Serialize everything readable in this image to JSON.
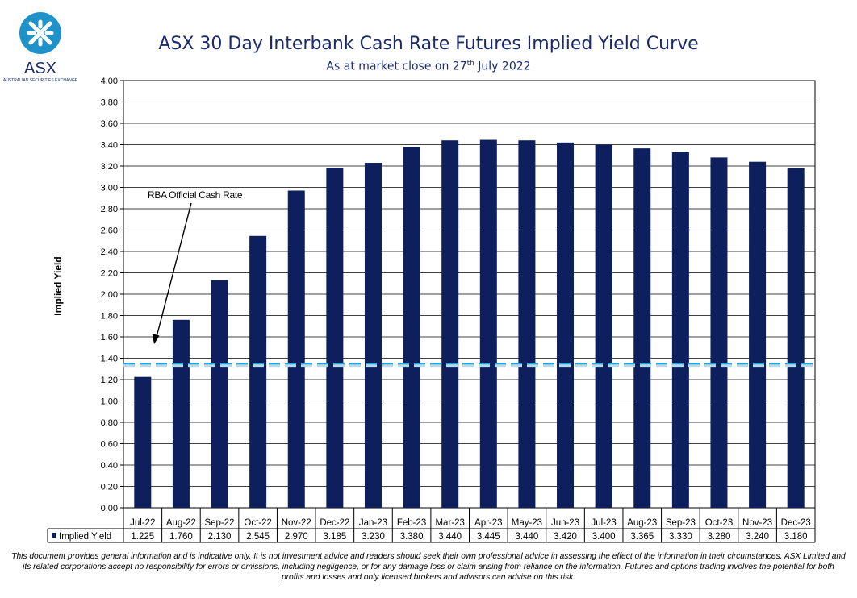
{
  "logo": {
    "text": "ASX",
    "tagline": "AUSTRALIAN SECURITIES EXCHANGE",
    "circle_color": "#1f93c9",
    "text_color": "#1a2a6b"
  },
  "header": {
    "title": "ASX 30 Day Interbank Cash Rate Futures Implied Yield Curve",
    "subtitle_pre": "As at market close on 27",
    "subtitle_sup": "th",
    "subtitle_post": " July 2022"
  },
  "chart_data": {
    "type": "bar",
    "ylabel": "Implied Yield",
    "ylim": [
      0,
      4
    ],
    "yticks": [
      "0.00",
      "0.20",
      "0.40",
      "0.60",
      "0.80",
      "1.00",
      "1.20",
      "1.40",
      "1.60",
      "1.80",
      "2.00",
      "2.20",
      "2.40",
      "2.60",
      "2.80",
      "3.00",
      "3.20",
      "3.40",
      "3.60",
      "3.80",
      "4.00"
    ],
    "grid": true,
    "categories": [
      "Jul-22",
      "Aug-22",
      "Sep-22",
      "Oct-22",
      "Nov-22",
      "Dec-22",
      "Jan-23",
      "Feb-23",
      "Mar-23",
      "Apr-23",
      "May-23",
      "Jun-23",
      "Jul-23",
      "Aug-23",
      "Sep-23",
      "Oct-23",
      "Nov-23",
      "Dec-23"
    ],
    "series": [
      {
        "name": "Implied Yield",
        "color": "#0d1f5c",
        "values": [
          1.225,
          1.76,
          2.13,
          2.545,
          2.97,
          3.185,
          3.23,
          3.38,
          3.44,
          3.445,
          3.44,
          3.42,
          3.4,
          3.365,
          3.33,
          3.28,
          3.24,
          3.18
        ],
        "labels": [
          "1.225",
          "1.760",
          "2.130",
          "2.545",
          "2.970",
          "3.185",
          "3.230",
          "3.380",
          "3.440",
          "3.445",
          "3.440",
          "3.420",
          "3.400",
          "3.365",
          "3.330",
          "3.280",
          "3.240",
          "3.180"
        ]
      }
    ],
    "reference_line": {
      "value": 1.35,
      "color": "#29a3e0"
    },
    "annotation": {
      "text": "RBA Official Cash Rate"
    },
    "data_table": true
  },
  "disclaimer": "This document provides general information and is indicative only. It is not investment advice and readers should seek their own professional advice in assessing the effect of the information in their circumstances. ASX Limited and its related corporations accept no responsibility for errors or omissions, including negligence, or for any damage loss or claim arising from reliance on the information. Futures and options trading involves the potential for both profits and losses and only licensed brokers and advisors can advise on this risk."
}
